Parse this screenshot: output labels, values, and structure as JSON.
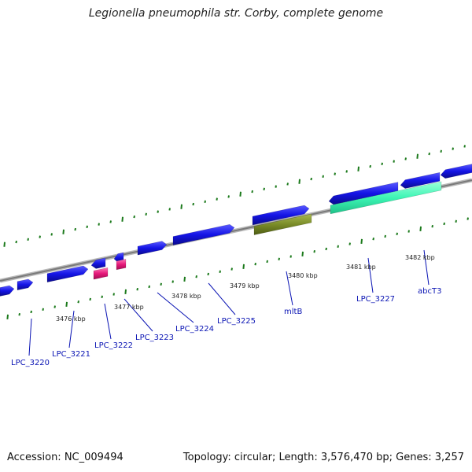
{
  "title": "Legionella pneumophila str. Corby, complete genome",
  "footer": {
    "accession": "Accession: NC_009494",
    "info": "Topology: circular; Length: 3,576,470 bp; Genes: 3,257"
  },
  "colors": {
    "cds": "#1414e6",
    "rna": "#e6197a",
    "highlight_olive": "#7a8c28",
    "highlight_mint": "#3cf5b4",
    "backbone": "#8a8a8a",
    "ticks": "#1c7a1c",
    "label": "#0a14b4"
  },
  "scale_labels": [
    "3476 kbp",
    "3477 kbp",
    "3478 kbp",
    "3479 kbp",
    "3480 kbp",
    "3481 kbp",
    "3482 kbp"
  ],
  "gene_labels": [
    "LPC_3220",
    "LPC_3221",
    "LPC_3222",
    "LPC_3223",
    "LPC_3224",
    "LPC_3225",
    "mltB",
    "LPC_3227",
    "abcT3"
  ]
}
